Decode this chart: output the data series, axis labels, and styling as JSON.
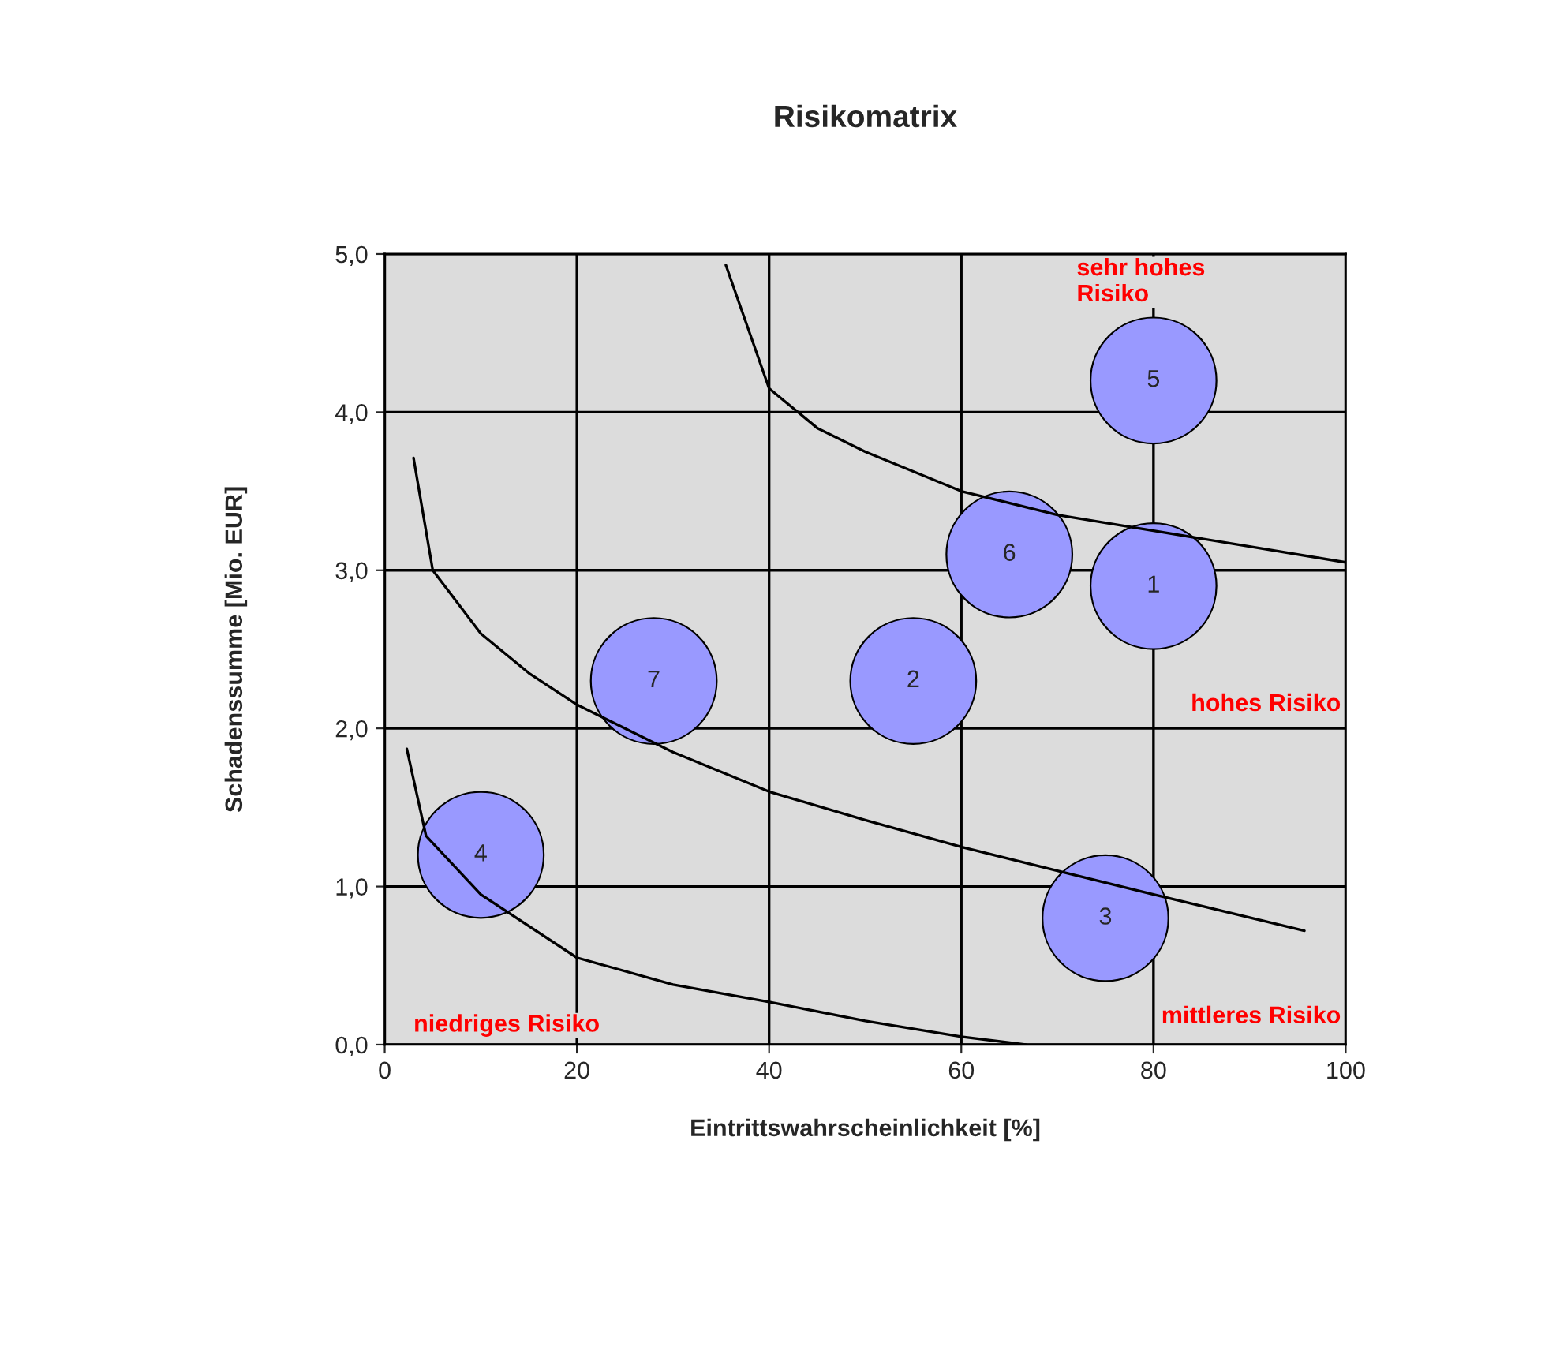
{
  "chart_data": {
    "type": "bubble",
    "title": "Risikomatrix",
    "xlabel": "Eintrittswahrscheinlichkeit [%]",
    "ylabel": "Schadenssumme [Mio. EUR]",
    "xlim": [
      0,
      100
    ],
    "ylim": [
      0,
      5
    ],
    "xticks": [
      0,
      20,
      40,
      60,
      80,
      100
    ],
    "yticks": [
      {
        "value": 0,
        "label": "0,0"
      },
      {
        "value": 1,
        "label": "1,0"
      },
      {
        "value": 2,
        "label": "2,0"
      },
      {
        "value": 3,
        "label": "3,0"
      },
      {
        "value": 4,
        "label": "4,0"
      },
      {
        "value": 5,
        "label": "5,0"
      }
    ],
    "grid": true,
    "legend": false,
    "series": [
      {
        "color": "#9999ff",
        "x": [
          80,
          55,
          75,
          10,
          80,
          65,
          28
        ],
        "values": [
          2.9,
          2.3,
          0.8,
          1.2,
          4.2,
          3.1,
          2.3
        ],
        "sizes": [
          1,
          1,
          1,
          1,
          1,
          1,
          1
        ]
      },
      {
        "type": "line",
        "color": "#000000",
        "x": [
          35.5,
          40,
          45,
          50,
          60,
          70,
          80,
          90,
          100
        ],
        "values": [
          4.93,
          4.15,
          3.9,
          3.75,
          3.5,
          3.35,
          3.25,
          3.15,
          3.05
        ]
      },
      {
        "type": "line",
        "color": "#000000",
        "x": [
          3,
          5,
          10,
          15,
          20,
          30,
          40,
          50,
          60,
          70,
          80,
          95.7
        ],
        "values": [
          3.71,
          3.0,
          2.6,
          2.35,
          2.15,
          1.85,
          1.6,
          1.42,
          1.25,
          1.1,
          0.95,
          0.72
        ]
      },
      {
        "type": "line",
        "color": "#000000",
        "x": [
          2.3,
          4.3,
          10,
          20,
          30,
          40,
          50,
          60,
          66.7
        ],
        "values": [
          1.87,
          1.32,
          0.95,
          0.55,
          0.38,
          0.27,
          0.15,
          0.05,
          0
        ]
      }
    ],
    "annotations": [
      "sehr hohes\nRisiko",
      "hohes Risiko",
      "mittleres Risiko",
      "niedriges Risiko",
      {
        "text": "1",
        "x": 80,
        "y": 2.9
      },
      {
        "text": "2",
        "x": 55,
        "y": 2.3
      },
      {
        "text": "3",
        "x": 75,
        "y": 0.8
      },
      {
        "text": "4",
        "x": 10,
        "y": 1.2
      },
      {
        "text": "5",
        "x": 80,
        "y": 4.2
      },
      {
        "text": "6",
        "x": 65,
        "y": 3.1
      },
      {
        "text": "7",
        "x": 28,
        "y": 2.3
      }
    ]
  }
}
